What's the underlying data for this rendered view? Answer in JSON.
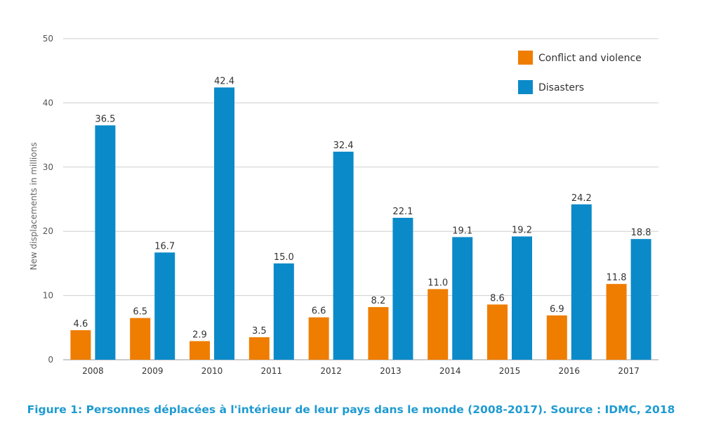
{
  "caption": "Figure 1: Personnes déplacées à l'intérieur de leur pays dans le monde (2008-2017). Source : IDMC, 2018",
  "chart_data": {
    "type": "bar",
    "title": "",
    "xlabel": "",
    "ylabel": "New displacements in millions",
    "ylim": [
      0,
      50
    ],
    "yticks": [
      0,
      10,
      20,
      30,
      40,
      50
    ],
    "grid": true,
    "legend_position": "top-right",
    "categories": [
      "2008",
      "2009",
      "2010",
      "2011",
      "2012",
      "2013",
      "2014",
      "2015",
      "2016",
      "2017"
    ],
    "series": [
      {
        "name": "Conflict and violence",
        "color": "#ef7d00",
        "values": [
          4.6,
          6.5,
          2.9,
          3.5,
          6.6,
          8.2,
          11.0,
          8.6,
          6.9,
          11.8
        ],
        "labels": [
          "4.6",
          "6.5",
          "2.9",
          "3.5",
          "6.6",
          "8.2",
          "11.0",
          "8.6",
          "6.9",
          "11.8"
        ]
      },
      {
        "name": "Disasters",
        "color": "#0b8ac9",
        "values": [
          36.5,
          16.7,
          42.4,
          15.0,
          32.4,
          22.1,
          19.1,
          19.2,
          24.2,
          18.8
        ],
        "labels": [
          "36.5",
          "16.7",
          "42.4",
          "15.0",
          "32.4",
          "22.1",
          "19.1",
          "19.2",
          "24.2",
          "18.8"
        ]
      }
    ]
  }
}
